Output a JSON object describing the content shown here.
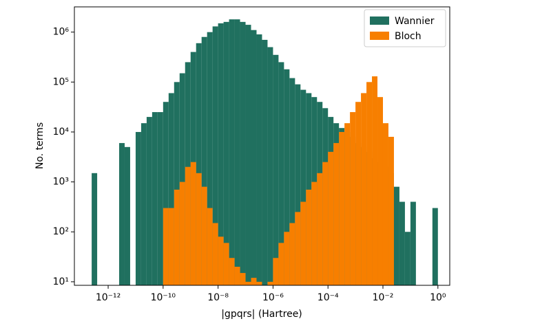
{
  "chart_data": {
    "type": "histogram",
    "xlabel": "|gpqrs| (Hartree)",
    "ylabel": "No. terms",
    "x_log": true,
    "y_log": true,
    "legend": "upper right",
    "bins": [
      1.585e-13,
      2.512e-13,
      3.981e-13,
      6.31e-13,
      1e-12,
      1.585e-12,
      2.512e-12,
      3.981e-12,
      6.31e-12,
      1e-11,
      1.585e-11,
      2.512e-11,
      3.981e-11,
      6.31e-11,
      1e-10,
      1.585e-10,
      2.512e-10,
      3.981e-10,
      6.31e-10,
      1e-09,
      1.585e-09,
      2.512e-09,
      3.981e-09,
      6.31e-09,
      1e-08,
      1.585e-08,
      2.512e-08,
      3.981e-08,
      6.31e-08,
      1e-07,
      1.585e-07,
      2.512e-07,
      3.981e-07,
      6.31e-07,
      1e-06,
      1.585e-06,
      2.512e-06,
      3.981e-06,
      6.31e-06,
      1e-05,
      1.585e-05,
      2.512e-05,
      3.981e-05,
      6.31e-05,
      0.0001,
      0.0001585,
      0.0002512,
      0.0003981,
      0.000631,
      0.001,
      0.001585,
      0.002512,
      0.003981,
      0.00631,
      0.01,
      0.01585,
      0.02512,
      0.03981,
      0.0631,
      0.1,
      0.1585,
      0.2512,
      0.3981,
      0.631,
      1
    ],
    "series": [
      {
        "name": "Wannier",
        "color": "#20705f",
        "values": [
          0,
          1500,
          0,
          0,
          0,
          0,
          6000,
          5000,
          0,
          10000,
          15000,
          20000,
          25000,
          25000,
          40000,
          60000,
          100000,
          150000,
          250000,
          400000,
          600000,
          800000,
          1000000,
          1300000,
          1500000,
          1600000,
          1800000,
          1800000,
          1600000,
          1400000,
          1100000,
          900000,
          700000,
          500000,
          350000,
          250000,
          180000,
          120000,
          90000,
          70000,
          60000,
          50000,
          40000,
          30000,
          20000,
          15000,
          12000,
          10000,
          8000,
          6000,
          5000,
          4000,
          3000,
          2500,
          2000,
          1500,
          800,
          400,
          100,
          400,
          0,
          0,
          0,
          300
        ]
      },
      {
        "name": "Bloch",
        "color": "#f77f00",
        "values": [
          0,
          0,
          0,
          0,
          0,
          0,
          0,
          0,
          0,
          0,
          0,
          0,
          0,
          0,
          300,
          300,
          700,
          1000,
          2000,
          2500,
          1500,
          800,
          300,
          150,
          80,
          60,
          30,
          20,
          15,
          10,
          12,
          10,
          0,
          10,
          30,
          60,
          100,
          150,
          250,
          400,
          700,
          1000,
          1500,
          2500,
          4000,
          6000,
          10000,
          15000,
          25000,
          40000,
          60000,
          100000,
          130000,
          50000,
          15000,
          8000,
          0,
          0,
          0,
          0,
          0,
          0,
          0,
          0
        ]
      }
    ],
    "xlim": [
      5.9e-14,
      2.7
    ],
    "ylim": [
      8.5,
      3200000
    ],
    "xticks": [
      {
        "value": 1e-12,
        "label": "10⁻¹²"
      },
      {
        "value": 1e-10,
        "label": "10⁻¹⁰"
      },
      {
        "value": 1e-08,
        "label": "10⁻⁸"
      },
      {
        "value": 1e-06,
        "label": "10⁻⁶"
      },
      {
        "value": 0.0001,
        "label": "10⁻⁴"
      },
      {
        "value": 0.01,
        "label": "10⁻²"
      },
      {
        "value": 1,
        "label": "10⁰"
      }
    ],
    "yticks": [
      {
        "value": 10,
        "label": "10¹"
      },
      {
        "value": 100,
        "label": "10²"
      },
      {
        "value": 1000,
        "label": "10³"
      },
      {
        "value": 10000,
        "label": "10⁴"
      },
      {
        "value": 100000,
        "label": "10⁵"
      },
      {
        "value": 1000000,
        "label": "10⁶"
      }
    ]
  }
}
